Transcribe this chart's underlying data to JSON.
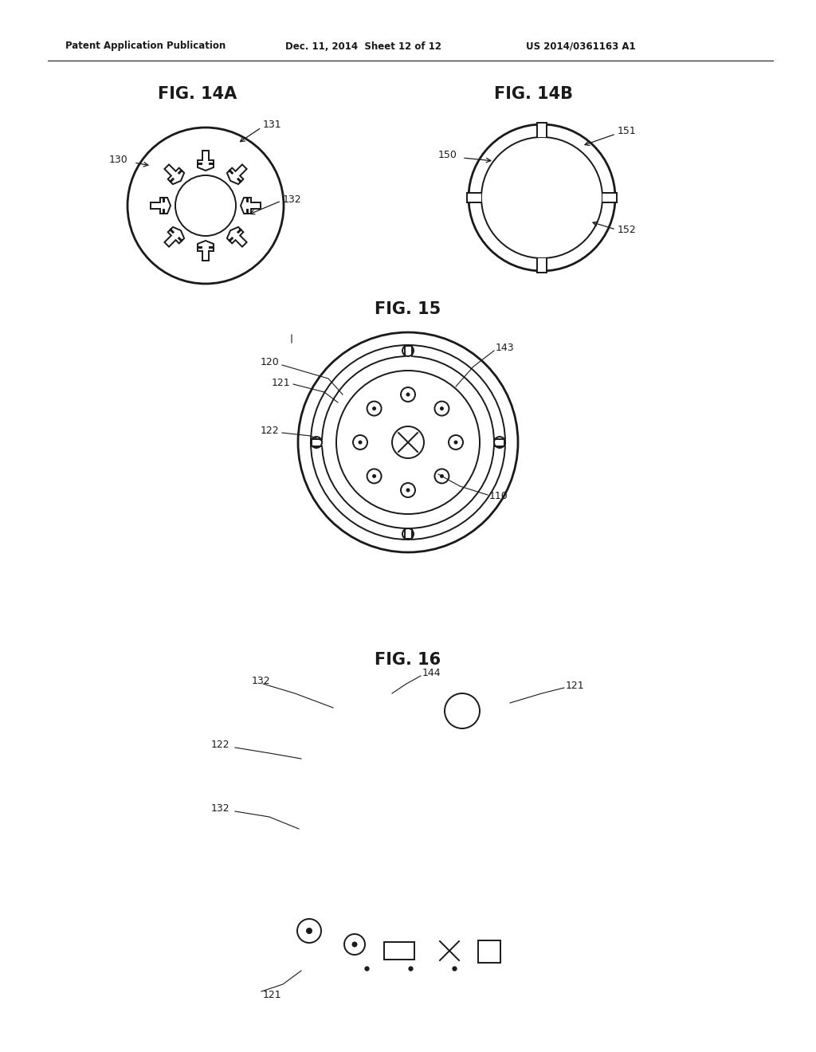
{
  "bg_color": "#ffffff",
  "header_text": "Patent Application Publication",
  "header_date": "Dec. 11, 2014  Sheet 12 of 12",
  "header_patent": "US 2014/0361163 A1",
  "fig14a_label": "FIG. 14A",
  "fig14b_label": "FIG. 14B",
  "fig15_label": "FIG. 15",
  "fig16_label": "FIG. 16",
  "line_color": "#1a1a1a",
  "lw_main": 1.4,
  "lw_thick": 2.0
}
